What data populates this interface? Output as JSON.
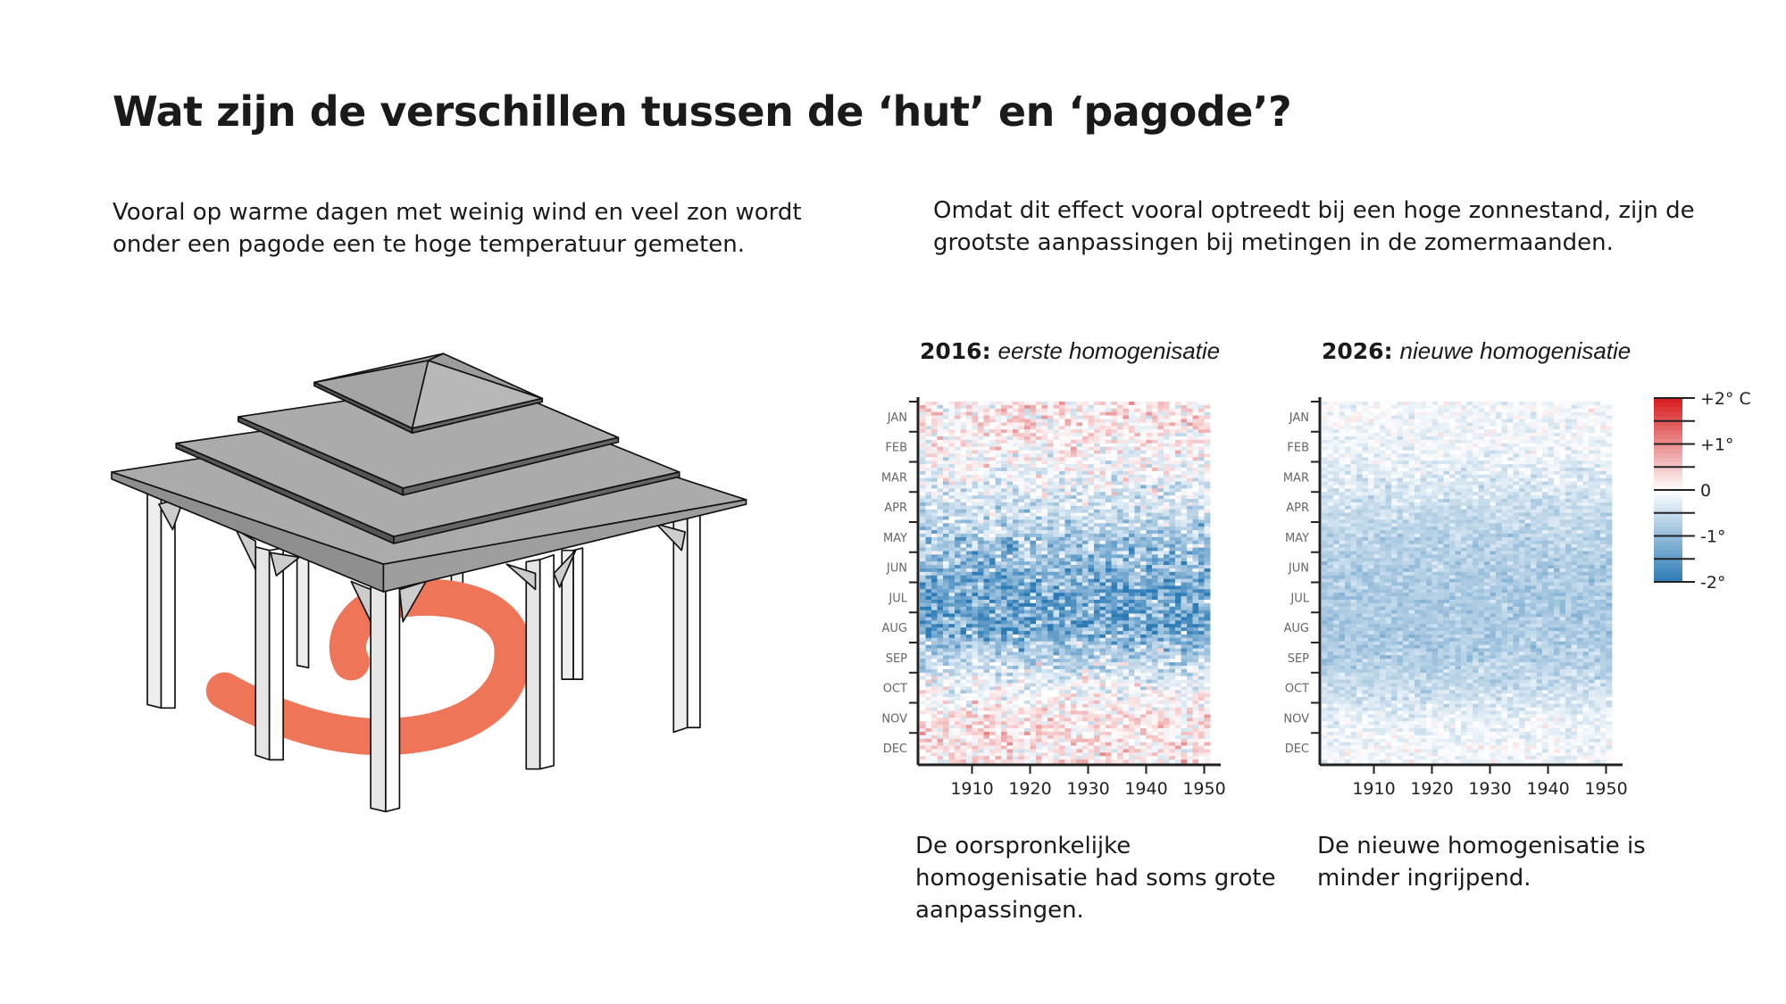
{
  "title": "Wat zijn de verschillen tussen de ‘hut’ en ‘pagode’?",
  "intro_left": "Vooral op warme dagen met weinig wind en veel zon wordt onder een pagode een te hoge temperatuur gemeten.",
  "intro_right": "Omdat dit effect vooral optreedt bij een hoge zonnestand, zijn de grootste aanpassingen bij metingen in de zomermaanden.",
  "illustration": {
    "subject": "pagode",
    "accent_color": "#ef7559",
    "roof_color": "#a9a9a9"
  },
  "chart_data": [
    {
      "type": "heatmap",
      "title_bold": "2016:",
      "title_italic": "eerste homogenisatie",
      "y_tick_labels": [
        "JAN",
        "FEB",
        "MAR",
        "APR",
        "MAY",
        "JUN",
        "JUL",
        "AUG",
        "SEP",
        "OCT",
        "NOV",
        "DEC"
      ],
      "x_tick_labels": [
        "1910",
        "1920",
        "1930",
        "1940",
        "1950"
      ],
      "xlim": [
        1901,
        1951
      ],
      "monthly_mean_adjustment": [
        0.15,
        0.05,
        -0.2,
        -0.4,
        -0.8,
        -1.1,
        -1.4,
        -1.3,
        -0.6,
        -0.1,
        0.2,
        0.2
      ],
      "caption": "De oorspronkelijke homogenisatie had soms grote aanpassingen."
    },
    {
      "type": "heatmap",
      "title_bold": "2026:",
      "title_italic": "nieuwe homogenisatie",
      "y_tick_labels": [
        "JAN",
        "FEB",
        "MAR",
        "APR",
        "MAY",
        "JUN",
        "JUL",
        "AUG",
        "SEP",
        "OCT",
        "NOV",
        "DEC"
      ],
      "x_tick_labels": [
        "1910",
        "1920",
        "1930",
        "1940",
        "1950"
      ],
      "xlim": [
        1901,
        1951
      ],
      "monthly_mean_adjustment": [
        -0.1,
        -0.15,
        -0.3,
        -0.5,
        -0.65,
        -0.75,
        -0.8,
        -0.8,
        -0.7,
        -0.5,
        -0.2,
        -0.1
      ],
      "caption": "De nieuwe homogenisatie is minder ingrijpend."
    }
  ],
  "legend": {
    "labels": [
      "+2° C",
      "+1°",
      "0",
      "-1°",
      "-2°"
    ],
    "range": [
      -2,
      2
    ],
    "colors": {
      "warm": "#d7191c",
      "neutral": "#ffffff",
      "cold": "#2c7bb6"
    }
  }
}
